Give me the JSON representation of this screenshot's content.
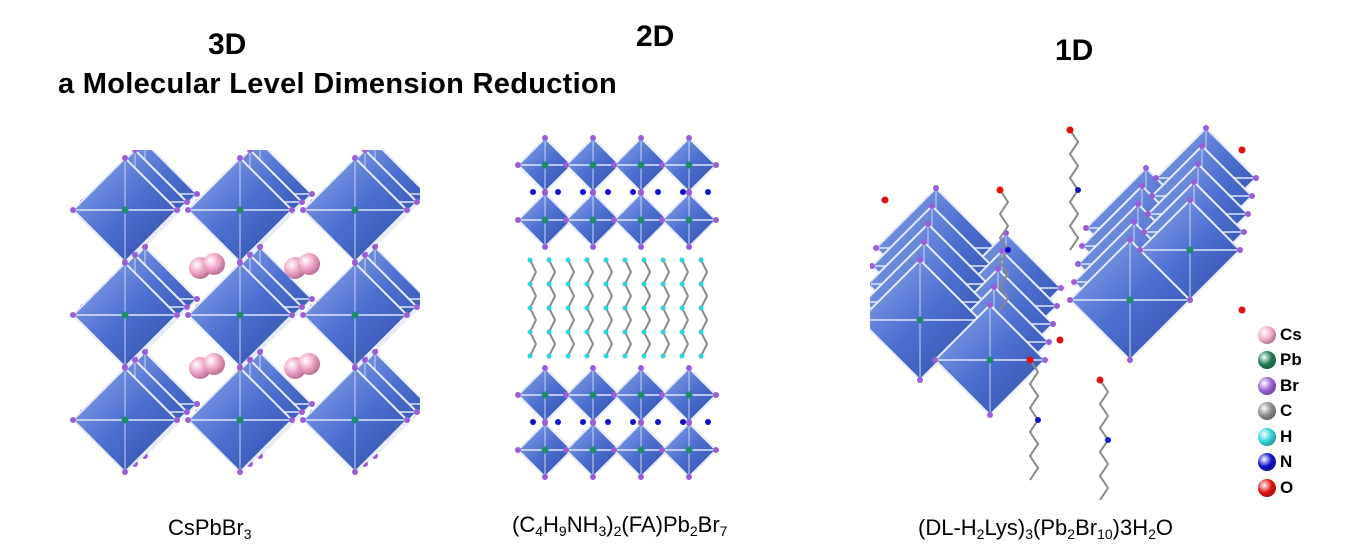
{
  "headers": {
    "d3": "3D",
    "d2": "2D",
    "d1": "1D"
  },
  "subtitle": "a Molecular Level Dimension Reduction",
  "formulas": {
    "f3d": {
      "parts": [
        "CsPbBr",
        "3"
      ]
    },
    "f2d": {
      "parts": [
        "(C",
        "4",
        "H",
        "9",
        "NH",
        "3",
        ")",
        "2",
        "(FA)Pb",
        "2",
        "Br",
        "7"
      ]
    },
    "f1d": {
      "parts": [
        "(DL-H",
        "2",
        "Lys)",
        "3",
        "(Pb",
        "2",
        "Br",
        "10",
        ")3H",
        "2",
        "O"
      ]
    }
  },
  "legend": [
    {
      "label": "Cs",
      "color": "#f0a8c8"
    },
    {
      "label": "Pb",
      "color": "#1e7a52"
    },
    {
      "label": "Br",
      "color": "#9a5fd6"
    },
    {
      "label": "C",
      "color": "#8a8a8a"
    },
    {
      "label": "H",
      "color": "#2fd4d8"
    },
    {
      "label": "N",
      "color": "#1010c8"
    },
    {
      "label": "O",
      "color": "#e01010"
    }
  ]
}
